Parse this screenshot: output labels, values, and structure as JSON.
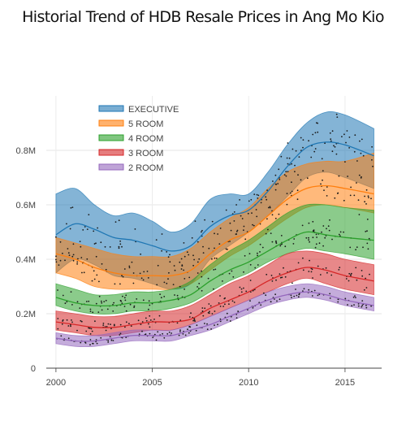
{
  "chart_data": {
    "type": "area",
    "title": "Historial Trend of HDB Resale Prices in Ang Mo Kio",
    "xlabel": "",
    "ylabel": "",
    "xlim": [
      1999.5,
      2016.9
    ],
    "ylim": [
      0,
      1.0
    ],
    "x_ticks": [
      {
        "value": 2000,
        "label": "2000"
      },
      {
        "value": 2005,
        "label": "2005"
      },
      {
        "value": 2010,
        "label": "2010"
      },
      {
        "value": 2015,
        "label": "2015"
      }
    ],
    "y_ticks": [
      {
        "value": 0,
        "label": "0"
      },
      {
        "value": 0.2,
        "label": "0.2M"
      },
      {
        "value": 0.4,
        "label": "0.4M"
      },
      {
        "value": 0.6,
        "label": "0.6M"
      },
      {
        "value": 0.8,
        "label": "0.8M"
      }
    ],
    "grid": true,
    "legend_position": "top-left",
    "x": [
      2000,
      2001,
      2002,
      2003,
      2004,
      2005,
      2006,
      2007,
      2008,
      2009,
      2010,
      2011,
      2012,
      2013,
      2014,
      2015,
      2016.5
    ],
    "series": [
      {
        "name": "EXECUTIVE",
        "color": "#1f77b4",
        "median": [
          0.49,
          0.53,
          0.51,
          0.48,
          0.47,
          0.45,
          0.43,
          0.45,
          0.52,
          0.56,
          0.58,
          0.65,
          0.74,
          0.81,
          0.83,
          0.82,
          0.78
        ],
        "lower": [
          0.35,
          0.4,
          0.38,
          0.34,
          0.33,
          0.31,
          0.29,
          0.31,
          0.4,
          0.45,
          0.5,
          0.56,
          0.63,
          0.7,
          0.72,
          0.7,
          0.66
        ],
        "upper": [
          0.64,
          0.66,
          0.6,
          0.56,
          0.57,
          0.54,
          0.5,
          0.53,
          0.62,
          0.64,
          0.64,
          0.72,
          0.82,
          0.9,
          0.94,
          0.93,
          0.88
        ]
      },
      {
        "name": "5 ROOM",
        "color": "#ff7f0e",
        "median": [
          0.42,
          0.4,
          0.37,
          0.35,
          0.34,
          0.34,
          0.34,
          0.36,
          0.42,
          0.47,
          0.5,
          0.56,
          0.62,
          0.66,
          0.67,
          0.66,
          0.64
        ],
        "lower": [
          0.35,
          0.33,
          0.3,
          0.29,
          0.29,
          0.29,
          0.29,
          0.31,
          0.36,
          0.41,
          0.45,
          0.5,
          0.55,
          0.59,
          0.6,
          0.59,
          0.57
        ],
        "upper": [
          0.48,
          0.46,
          0.44,
          0.42,
          0.41,
          0.41,
          0.41,
          0.44,
          0.5,
          0.55,
          0.59,
          0.66,
          0.72,
          0.75,
          0.76,
          0.76,
          0.79
        ]
      },
      {
        "name": "4 ROOM",
        "color": "#2ca02c",
        "median": [
          0.26,
          0.24,
          0.23,
          0.23,
          0.24,
          0.24,
          0.25,
          0.27,
          0.32,
          0.36,
          0.39,
          0.43,
          0.47,
          0.5,
          0.49,
          0.48,
          0.47
        ],
        "lower": [
          0.23,
          0.21,
          0.2,
          0.2,
          0.21,
          0.21,
          0.22,
          0.24,
          0.28,
          0.32,
          0.35,
          0.39,
          0.42,
          0.44,
          0.43,
          0.42,
          0.4
        ],
        "upper": [
          0.31,
          0.29,
          0.27,
          0.27,
          0.28,
          0.28,
          0.29,
          0.32,
          0.38,
          0.43,
          0.47,
          0.52,
          0.57,
          0.6,
          0.6,
          0.59,
          0.58
        ]
      },
      {
        "name": "3 ROOM",
        "color": "#d62728",
        "median": [
          0.17,
          0.16,
          0.15,
          0.15,
          0.16,
          0.17,
          0.17,
          0.18,
          0.22,
          0.25,
          0.28,
          0.32,
          0.35,
          0.37,
          0.36,
          0.34,
          0.32
        ],
        "lower": [
          0.14,
          0.13,
          0.12,
          0.12,
          0.13,
          0.14,
          0.14,
          0.16,
          0.19,
          0.22,
          0.25,
          0.28,
          0.31,
          0.33,
          0.31,
          0.29,
          0.27
        ],
        "upper": [
          0.21,
          0.2,
          0.19,
          0.19,
          0.2,
          0.21,
          0.21,
          0.23,
          0.27,
          0.31,
          0.34,
          0.38,
          0.42,
          0.43,
          0.42,
          0.4,
          0.38
        ]
      },
      {
        "name": "2 ROOM",
        "color": "#9467bd",
        "median": [
          0.11,
          0.1,
          0.1,
          0.11,
          0.12,
          0.12,
          0.12,
          0.14,
          0.16,
          0.19,
          0.22,
          0.25,
          0.27,
          0.28,
          0.27,
          0.25,
          0.23
        ],
        "lower": [
          0.09,
          0.08,
          0.08,
          0.09,
          0.1,
          0.1,
          0.1,
          0.12,
          0.14,
          0.17,
          0.2,
          0.23,
          0.25,
          0.26,
          0.25,
          0.23,
          0.21
        ],
        "upper": [
          0.13,
          0.12,
          0.12,
          0.13,
          0.14,
          0.14,
          0.14,
          0.16,
          0.19,
          0.22,
          0.25,
          0.28,
          0.3,
          0.31,
          0.3,
          0.28,
          0.26
        ]
      }
    ]
  }
}
